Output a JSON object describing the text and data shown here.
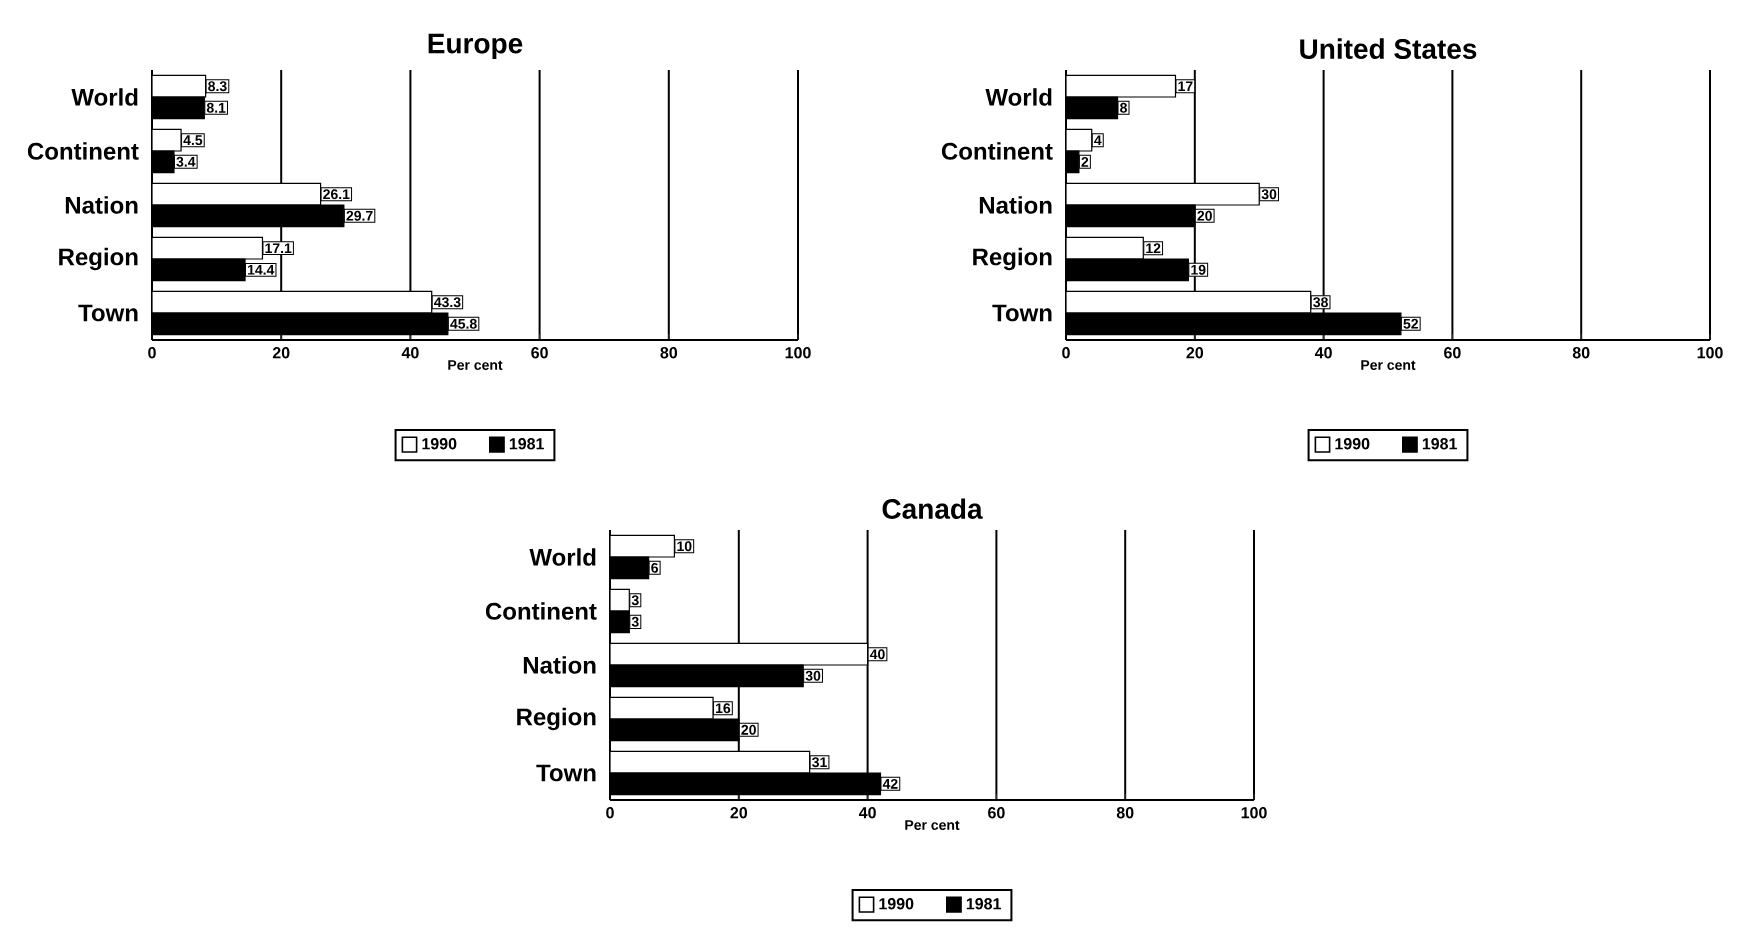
{
  "chart_data": [
    {
      "type": "bar",
      "orientation": "horizontal",
      "title": "Europe",
      "xlabel": "Per cent",
      "categories": [
        "World",
        "Continent",
        "Nation",
        "Region",
        "Town"
      ],
      "series": [
        {
          "name": "1990",
          "color": "#ffffff",
          "values": [
            8.3,
            4.5,
            26.1,
            17.1,
            43.3
          ]
        },
        {
          "name": "1981",
          "color": "#000000",
          "values": [
            8.1,
            3.4,
            29.7,
            14.4,
            45.8
          ]
        }
      ],
      "xlim": [
        0,
        100
      ],
      "xticks": [
        0,
        20,
        40,
        60,
        80,
        100
      ],
      "grid": "x",
      "legend": "bottom",
      "data_labels": true
    },
    {
      "type": "bar",
      "orientation": "horizontal",
      "title": "United States",
      "xlabel": "Per cent",
      "categories": [
        "World",
        "Continent",
        "Nation",
        "Region",
        "Town"
      ],
      "series": [
        {
          "name": "1990",
          "color": "#ffffff",
          "values": [
            17,
            4,
            30,
            12,
            38
          ]
        },
        {
          "name": "1981",
          "color": "#000000",
          "values": [
            8,
            2,
            20,
            19,
            52
          ]
        }
      ],
      "xlim": [
        0,
        100
      ],
      "xticks": [
        0,
        20,
        40,
        60,
        80,
        100
      ],
      "grid": "x",
      "legend": "bottom",
      "data_labels": true
    },
    {
      "type": "bar",
      "orientation": "horizontal",
      "title": "Canada",
      "xlabel": "Per cent",
      "categories": [
        "World",
        "Continent",
        "Nation",
        "Region",
        "Town"
      ],
      "series": [
        {
          "name": "1990",
          "color": "#ffffff",
          "values": [
            10,
            3,
            40,
            16,
            31
          ]
        },
        {
          "name": "1981",
          "color": "#000000",
          "values": [
            6,
            3,
            30,
            20,
            42
          ]
        }
      ],
      "xlim": [
        0,
        100
      ],
      "xticks": [
        0,
        20,
        40,
        60,
        80,
        100
      ],
      "grid": "x",
      "legend": "bottom",
      "data_labels": true
    }
  ]
}
